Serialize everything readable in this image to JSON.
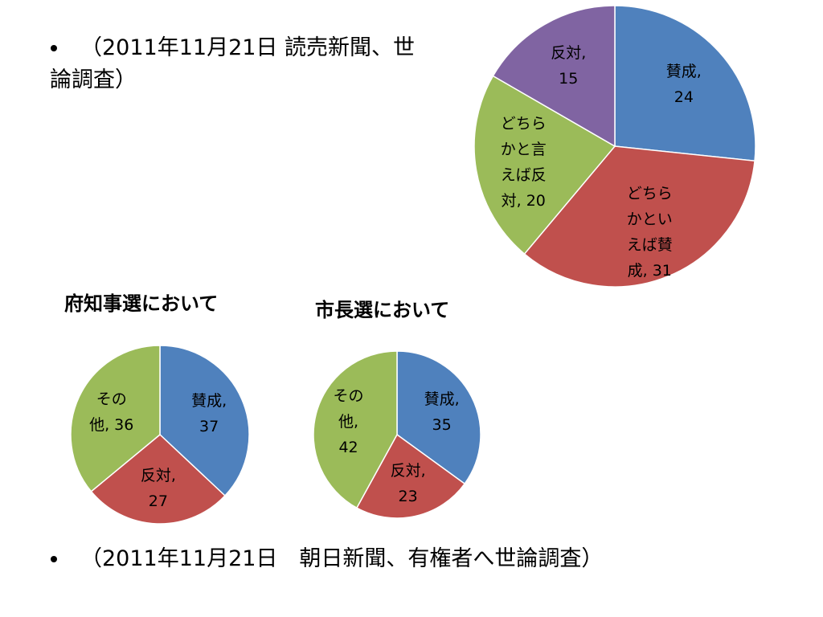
{
  "bullets": [
    "（2011年11月21日 読売新聞、世論調査）",
    "（2011年11月21日　朝日新聞、有権者へ世論調査）"
  ],
  "chart_data": [
    {
      "type": "pie",
      "values": [
        24,
        31,
        20,
        15
      ],
      "value_labels": [
        "賛成,\n24",
        "どちら\nかとい\nえば賛\n成, 31",
        "どちら\nかと言\nえば反\n対, 20",
        "反対,\n15"
      ],
      "colors": [
        "#4f81bd",
        "#c0504d",
        "#9bbb59",
        "#8064a2"
      ]
    },
    {
      "type": "pie",
      "title": "府知事選において",
      "values": [
        37,
        27,
        36
      ],
      "value_labels": [
        "賛成,\n37",
        "反対,\n27",
        "その\n他, 36"
      ],
      "colors": [
        "#4f81bd",
        "#c0504d",
        "#9bbb59"
      ]
    },
    {
      "type": "pie",
      "title": "市長選において",
      "values": [
        35,
        23,
        42
      ],
      "value_labels": [
        "賛成,\n35",
        "反対,\n23",
        "その\n他,\n42"
      ],
      "colors": [
        "#4f81bd",
        "#c0504d",
        "#9bbb59"
      ]
    }
  ]
}
